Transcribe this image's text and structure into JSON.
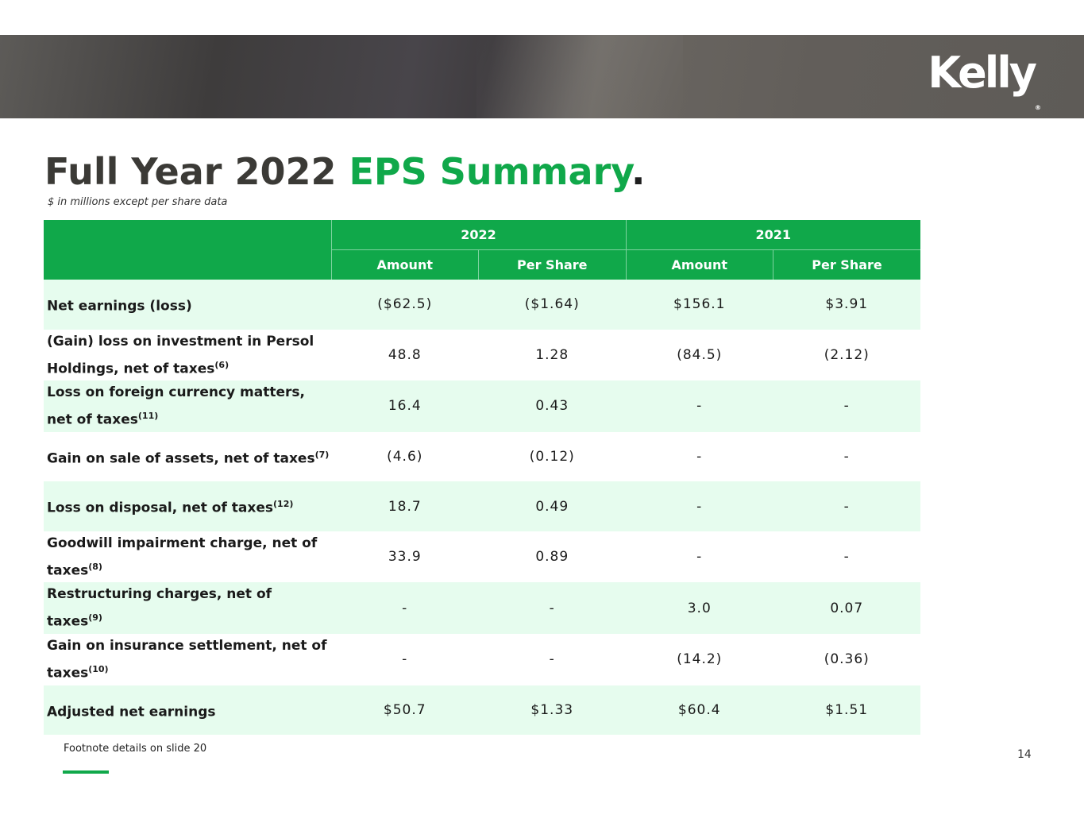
{
  "brand": {
    "logo_text": "Kelly",
    "logo_mark": "®"
  },
  "title": {
    "part1": "Full Year 2022",
    "part2": "EPS Summary",
    "dot": "."
  },
  "subtitle": "$ in millions except per share data",
  "table": {
    "years": [
      "2022",
      "2021"
    ],
    "subheaders": [
      "Amount",
      "Per Share",
      "Amount",
      "Per Share"
    ],
    "rows": [
      {
        "label": "Net earnings (loss)",
        "note": "",
        "values": [
          "($62.5)",
          "($1.64)",
          "$156.1",
          "$3.91"
        ]
      },
      {
        "label": "(Gain) loss on investment in Persol Holdings, net of taxes",
        "note": "(6)",
        "values": [
          "48.8",
          "1.28",
          "(84.5)",
          "(2.12)"
        ]
      },
      {
        "label": "Loss on foreign currency matters, net of taxes",
        "note": "(11)",
        "values": [
          "16.4",
          "0.43",
          "-",
          "-"
        ]
      },
      {
        "label": "Gain on sale of assets, net of taxes",
        "note": "(7)",
        "values": [
          "(4.6)",
          "(0.12)",
          "-",
          "-"
        ]
      },
      {
        "label": "Loss on disposal, net of taxes",
        "note": "(12)",
        "values": [
          "18.7",
          "0.49",
          "-",
          "-"
        ]
      },
      {
        "label": "Goodwill impairment charge, net of taxes",
        "note": "(8)",
        "values": [
          "33.9",
          "0.89",
          "-",
          "-"
        ]
      },
      {
        "label": "Restructuring charges, net of taxes",
        "note": "(9)",
        "values": [
          "-",
          "-",
          "3.0",
          "0.07"
        ]
      },
      {
        "label": "Gain on insurance settlement, net of taxes",
        "note": "(10)",
        "values": [
          "-",
          "-",
          "(14.2)",
          "(0.36)"
        ]
      },
      {
        "label": "Adjusted net earnings",
        "note": "",
        "values": [
          "$50.7",
          "$1.33",
          "$60.4",
          "$1.51"
        ]
      }
    ]
  },
  "footnote": "Footnote details on slide 20",
  "page_number": "14",
  "colors": {
    "accent": "#10a84a",
    "row_alt": "#e6fcee",
    "title_dark": "#3b3a36"
  }
}
